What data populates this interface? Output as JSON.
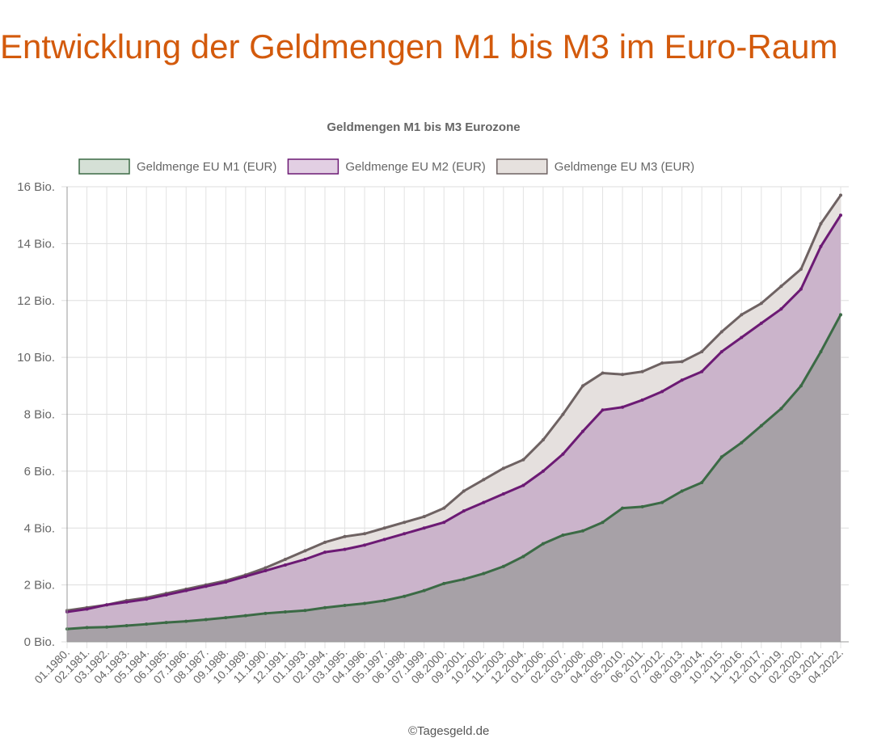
{
  "page_title": "Entwicklung der Geldmengen M1 bis M3 im Euro-Raum",
  "footer": "©Tagesgeld.de",
  "chart_data": {
    "type": "area",
    "title": "Geldmengen M1 bis M3 Eurozone",
    "xlabel": "",
    "ylabel": "",
    "ylim": [
      0,
      16
    ],
    "yticks": [
      "0 Bio.",
      "2 Bio.",
      "4 Bio.",
      "6 Bio.",
      "8 Bio.",
      "10 Bio.",
      "12 Bio.",
      "14 Bio.",
      "16 Bio."
    ],
    "ytick_values": [
      0,
      2,
      4,
      6,
      8,
      10,
      12,
      14,
      16
    ],
    "grid": true,
    "legend": "top",
    "categories": [
      "01.1980.",
      "02.1981.",
      "03.1982.",
      "04.1983.",
      "05.1984.",
      "06.1985.",
      "07.1986.",
      "08.1987.",
      "09.1988.",
      "10.1989.",
      "11.1990.",
      "12.1991.",
      "01.1993.",
      "02.1994.",
      "03.1995.",
      "04.1996.",
      "05.1997.",
      "06.1998.",
      "07.1999.",
      "08.2000.",
      "09.2001.",
      "10.2002.",
      "11.2003.",
      "12.2004.",
      "01.2006.",
      "02.2007.",
      "03.2008.",
      "04.2009.",
      "05.2010.",
      "06.2011.",
      "07.2012.",
      "08.2013.",
      "09.2014.",
      "10.2015.",
      "11.2016.",
      "12.2017.",
      "01.2019.",
      "02.2020.",
      "03.2021.",
      "04.2022."
    ],
    "series": [
      {
        "name": "Geldmenge EU M3 (EUR)",
        "line_color": "#6e6262",
        "fill_color": "#e5e0de",
        "values": [
          1.1,
          1.2,
          1.3,
          1.45,
          1.55,
          1.7,
          1.85,
          2.0,
          2.15,
          2.35,
          2.6,
          2.9,
          3.2,
          3.5,
          3.7,
          3.8,
          4.0,
          4.2,
          4.4,
          4.7,
          5.3,
          5.7,
          6.1,
          6.4,
          7.1,
          8.0,
          9.0,
          9.45,
          9.4,
          9.5,
          9.8,
          9.85,
          10.2,
          10.9,
          11.5,
          11.9,
          12.5,
          13.1,
          14.7,
          15.7
        ]
      },
      {
        "name": "Geldmenge EU M2 (EUR)",
        "line_color": "#6c1a74",
        "fill_color": "#cbb4cb",
        "values": [
          1.05,
          1.15,
          1.3,
          1.4,
          1.5,
          1.65,
          1.8,
          1.95,
          2.1,
          2.3,
          2.5,
          2.7,
          2.9,
          3.15,
          3.25,
          3.4,
          3.6,
          3.8,
          4.0,
          4.2,
          4.6,
          4.9,
          5.2,
          5.5,
          6.0,
          6.6,
          7.4,
          8.15,
          8.25,
          8.5,
          8.8,
          9.2,
          9.5,
          10.2,
          10.7,
          11.2,
          11.7,
          12.4,
          13.9,
          15.0
        ]
      },
      {
        "name": "Geldmenge EU M1 (EUR)",
        "line_color": "#3b6a45",
        "fill_color": "#a7a1a7",
        "values": [
          0.45,
          0.5,
          0.52,
          0.57,
          0.62,
          0.68,
          0.72,
          0.78,
          0.85,
          0.92,
          1.0,
          1.05,
          1.1,
          1.2,
          1.28,
          1.35,
          1.45,
          1.6,
          1.8,
          2.05,
          2.2,
          2.4,
          2.65,
          3.0,
          3.45,
          3.75,
          3.9,
          4.2,
          4.7,
          4.75,
          4.9,
          5.3,
          5.6,
          6.5,
          7.0,
          7.6,
          8.2,
          9.0,
          10.2,
          11.5
        ]
      }
    ],
    "legend_order": [
      "Geldmenge EU M1 (EUR)",
      "Geldmenge EU M2 (EUR)",
      "Geldmenge EU M3 (EUR)"
    ],
    "legend_box_colors": {
      "Geldmenge EU M1 (EUR)": "#d5e0d6",
      "Geldmenge EU M2 (EUR)": "#e2cfe3",
      "Geldmenge EU M3 (EUR)": "#e6e1de"
    }
  }
}
